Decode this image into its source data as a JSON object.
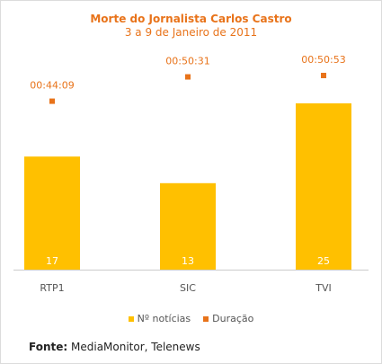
{
  "chart_data": {
    "type": "bar",
    "title": "Morte do Jornalista Carlos Castro",
    "subtitle": "3 a 9 de Janeiro de 2011",
    "categories": [
      "RTP1",
      "SIC",
      "TVI"
    ],
    "series": [
      {
        "name": "Nº notícias",
        "type": "bar",
        "values": [
          17,
          13,
          25
        ],
        "color": "#ffc000"
      },
      {
        "name": "Duração",
        "type": "scatter",
        "values": [
          "00:44:09",
          "00:50:31",
          "00:50:53"
        ],
        "values_seconds": [
          2649,
          3031,
          3053
        ],
        "color": "#e8731a"
      }
    ],
    "legend": "bottom-center",
    "grid": false
  },
  "source_label": "Fonte:",
  "source_text": "MediaMonitor, Telenews",
  "colors": {
    "title": "#e8731a",
    "bar": "#ffc000",
    "marker": "#e8731a",
    "axis": "#cccccc"
  }
}
